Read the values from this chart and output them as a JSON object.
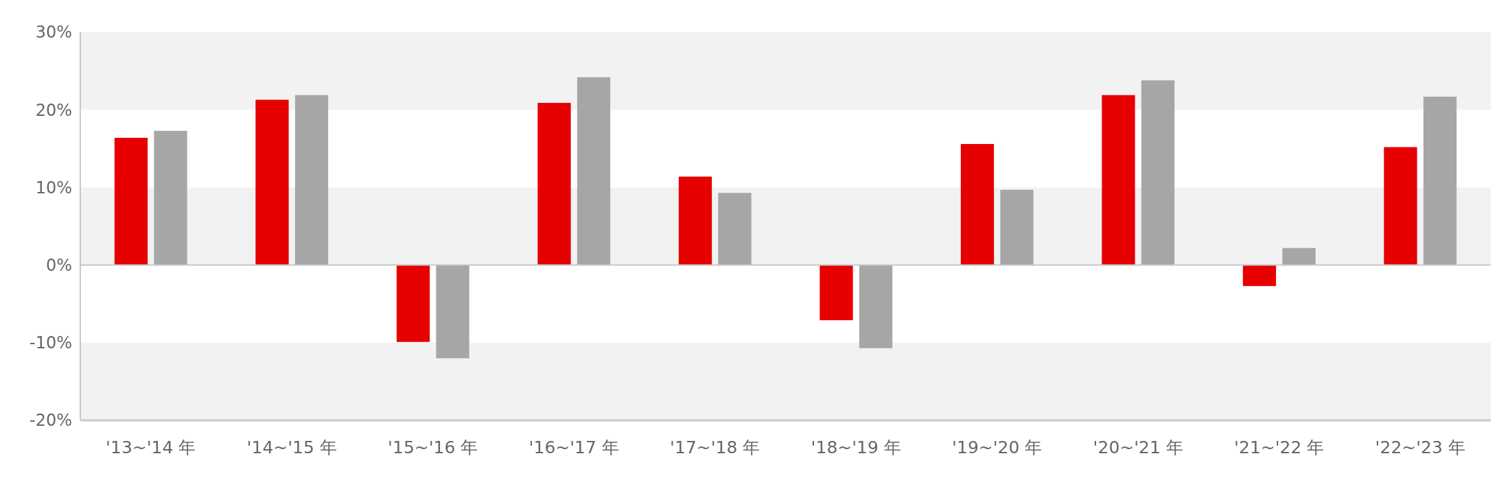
{
  "chart_data": {
    "type": "bar",
    "categories": [
      "'13~'14 年",
      "'14~'15 年",
      "'15~'16 年",
      "'16~'17 年",
      "'17~'18 年",
      "'18~'19 年",
      "'19~'20 年",
      "'20~'21 年",
      "'21~'22 年",
      "'22~'23 年"
    ],
    "series": [
      {
        "color": "#e60000",
        "values": [
          16.4,
          21.3,
          -9.9,
          20.9,
          11.4,
          -7.1,
          15.6,
          21.9,
          -2.7,
          15.2
        ]
      },
      {
        "color": "#a6a6a6",
        "values": [
          17.3,
          21.9,
          -12.0,
          24.2,
          9.3,
          -10.7,
          9.7,
          23.8,
          2.2,
          21.7
        ]
      }
    ],
    "ylim": [
      -20,
      30
    ],
    "yticks": [
      {
        "value": -20,
        "label": "-20%"
      },
      {
        "value": -10,
        "label": "-10%"
      },
      {
        "value": 0,
        "label": "0%"
      },
      {
        "value": 10,
        "label": "10%"
      },
      {
        "value": 20,
        "label": "20%"
      },
      {
        "value": 30,
        "label": "30%"
      }
    ],
    "grid": "y"
  }
}
